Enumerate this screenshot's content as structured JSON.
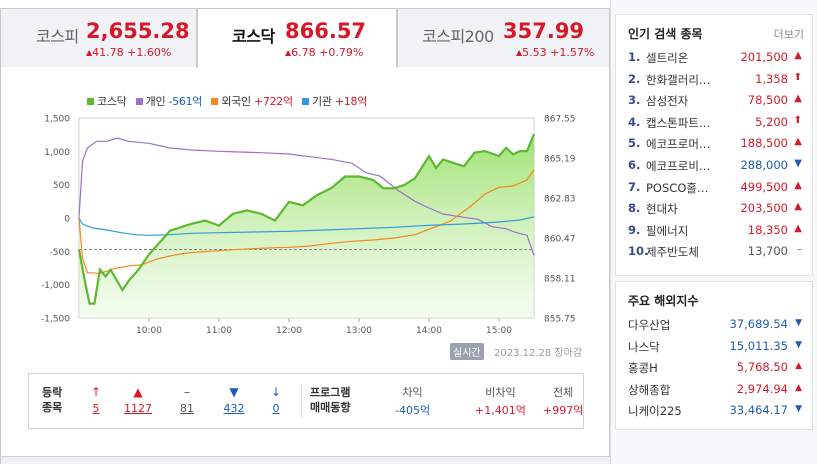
{
  "tabs": [
    {
      "name": "코스피",
      "value": "2,655.28",
      "change": "41.78 +1.60%",
      "active": false
    },
    {
      "name": "코스닥",
      "value": "866.57",
      "change": "6.78 +0.79%",
      "active": true
    },
    {
      "name": "코스피200",
      "value": "357.99",
      "change": "5.53 +1.57%",
      "active": false
    }
  ],
  "legend": [
    {
      "label": "코스닥",
      "value": "",
      "color": "#5cb82e"
    },
    {
      "label": "개인",
      "value": "-561억",
      "color": "#9b72c7"
    },
    {
      "label": "외국인",
      "value": "+722억",
      "color": "#f08a1c"
    },
    {
      "label": "기관",
      "value": "+18억",
      "color": "#2e9ae0"
    }
  ],
  "realtime_label": "실시간",
  "date_label": "2023.12.28 장마감",
  "chart_data": {
    "type": "line",
    "x_ticks": [
      "10:00",
      "11:00",
      "12:00",
      "13:00",
      "14:00",
      "15:00"
    ],
    "x_tick_times": [
      10.0,
      11.0,
      12.0,
      13.0,
      14.0,
      15.0
    ],
    "x_range": [
      9.0,
      15.5
    ],
    "y_left_ticks": [
      "1,500",
      "1,000",
      "500",
      "0",
      "-500",
      "-1,000",
      "-1,500"
    ],
    "y_left_range": [
      -1500,
      1500
    ],
    "y_right_ticks": [
      "867.55",
      "865.19",
      "862.83",
      "860.47",
      "858.11",
      "855.75"
    ],
    "y_right_range": [
      855.75,
      867.55
    ],
    "prev_close": 859.79,
    "series": [
      {
        "name": "코스닥",
        "axis": "right",
        "color": "#5cb82e",
        "fill": true,
        "points": [
          [
            9.0,
            859.8
          ],
          [
            9.08,
            858.0
          ],
          [
            9.15,
            856.6
          ],
          [
            9.22,
            856.6
          ],
          [
            9.3,
            858.6
          ],
          [
            9.38,
            858.2
          ],
          [
            9.45,
            858.6
          ],
          [
            9.55,
            857.9
          ],
          [
            9.62,
            857.4
          ],
          [
            9.72,
            858.0
          ],
          [
            9.85,
            858.6
          ],
          [
            10.0,
            859.5
          ],
          [
            10.15,
            860.2
          ],
          [
            10.3,
            860.9
          ],
          [
            10.45,
            861.1
          ],
          [
            10.6,
            861.3
          ],
          [
            10.8,
            861.5
          ],
          [
            11.0,
            861.2
          ],
          [
            11.2,
            861.9
          ],
          [
            11.4,
            862.1
          ],
          [
            11.6,
            861.9
          ],
          [
            11.8,
            861.5
          ],
          [
            12.0,
            862.6
          ],
          [
            12.2,
            862.4
          ],
          [
            12.4,
            863.0
          ],
          [
            12.6,
            863.4
          ],
          [
            12.8,
            864.1
          ],
          [
            13.0,
            864.1
          ],
          [
            13.2,
            863.9
          ],
          [
            13.35,
            863.4
          ],
          [
            13.5,
            863.4
          ],
          [
            13.65,
            863.6
          ],
          [
            13.8,
            864.0
          ],
          [
            14.0,
            865.3
          ],
          [
            14.1,
            864.6
          ],
          [
            14.2,
            865.1
          ],
          [
            14.35,
            864.9
          ],
          [
            14.5,
            864.7
          ],
          [
            14.65,
            865.5
          ],
          [
            14.8,
            865.6
          ],
          [
            15.0,
            865.3
          ],
          [
            15.1,
            865.8
          ],
          [
            15.2,
            865.4
          ],
          [
            15.3,
            865.6
          ],
          [
            15.4,
            865.6
          ],
          [
            15.5,
            866.6
          ]
        ]
      },
      {
        "name": "개인",
        "axis": "left",
        "color": "#9b72c7",
        "fill": false,
        "points": [
          [
            9.0,
            0
          ],
          [
            9.05,
            850
          ],
          [
            9.12,
            1050
          ],
          [
            9.25,
            1150
          ],
          [
            9.4,
            1150
          ],
          [
            9.55,
            1200
          ],
          [
            9.7,
            1150
          ],
          [
            10.0,
            1120
          ],
          [
            10.3,
            1050
          ],
          [
            10.6,
            1020
          ],
          [
            11.0,
            1000
          ],
          [
            11.3,
            990
          ],
          [
            11.6,
            980
          ],
          [
            12.0,
            960
          ],
          [
            12.3,
            920
          ],
          [
            12.6,
            880
          ],
          [
            12.9,
            820
          ],
          [
            13.1,
            680
          ],
          [
            13.3,
            630
          ],
          [
            13.55,
            420
          ],
          [
            13.8,
            250
          ],
          [
            14.0,
            150
          ],
          [
            14.2,
            60
          ],
          [
            14.5,
            10
          ],
          [
            14.7,
            -20
          ],
          [
            14.9,
            -130
          ],
          [
            15.1,
            -160
          ],
          [
            15.25,
            -220
          ],
          [
            15.4,
            -260
          ],
          [
            15.5,
            -561
          ]
        ]
      },
      {
        "name": "외국인",
        "axis": "left",
        "color": "#f08a1c",
        "fill": false,
        "points": [
          [
            9.0,
            0
          ],
          [
            9.05,
            -600
          ],
          [
            9.12,
            -820
          ],
          [
            9.3,
            -830
          ],
          [
            9.5,
            -760
          ],
          [
            9.7,
            -720
          ],
          [
            9.9,
            -700
          ],
          [
            10.1,
            -620
          ],
          [
            10.3,
            -570
          ],
          [
            10.5,
            -530
          ],
          [
            10.7,
            -510
          ],
          [
            11.0,
            -490
          ],
          [
            11.3,
            -470
          ],
          [
            11.7,
            -450
          ],
          [
            12.0,
            -440
          ],
          [
            12.3,
            -420
          ],
          [
            12.6,
            -380
          ],
          [
            12.9,
            -350
          ],
          [
            13.2,
            -330
          ],
          [
            13.5,
            -300
          ],
          [
            13.8,
            -250
          ],
          [
            14.0,
            -170
          ],
          [
            14.3,
            -50
          ],
          [
            14.6,
            180
          ],
          [
            14.8,
            360
          ],
          [
            15.0,
            460
          ],
          [
            15.2,
            480
          ],
          [
            15.4,
            570
          ],
          [
            15.5,
            722
          ]
        ]
      },
      {
        "name": "기관",
        "axis": "left",
        "color": "#2e9ae0",
        "fill": false,
        "points": [
          [
            9.0,
            0
          ],
          [
            9.05,
            -90
          ],
          [
            9.2,
            -150
          ],
          [
            9.4,
            -180
          ],
          [
            9.6,
            -220
          ],
          [
            9.8,
            -250
          ],
          [
            10.0,
            -260
          ],
          [
            10.3,
            -250
          ],
          [
            10.6,
            -230
          ],
          [
            11.0,
            -220
          ],
          [
            11.5,
            -210
          ],
          [
            12.0,
            -200
          ],
          [
            12.5,
            -180
          ],
          [
            13.0,
            -160
          ],
          [
            13.5,
            -140
          ],
          [
            14.0,
            -110
          ],
          [
            14.5,
            -90
          ],
          [
            15.0,
            -60
          ],
          [
            15.3,
            -30
          ],
          [
            15.5,
            18
          ]
        ]
      }
    ]
  },
  "stats": {
    "label_line1": "등락",
    "label_line2": "종목",
    "items": [
      {
        "icon": "arrow-up-icon",
        "glyph": "↑",
        "value": "5",
        "color": "#d6192a"
      },
      {
        "icon": "triangle-up-icon",
        "glyph": "▲",
        "value": "1127",
        "color": "#d6192a"
      },
      {
        "icon": "flat-icon",
        "glyph": "–",
        "value": "81",
        "color": "#555555"
      },
      {
        "icon": "triangle-down-icon",
        "glyph": "▼",
        "value": "432",
        "color": "#1e5bb8"
      },
      {
        "icon": "arrow-down-icon",
        "glyph": "↓",
        "value": "0",
        "color": "#1e5bb8"
      }
    ],
    "program_label_line1": "프로그램",
    "program_label_line2": "매매동향",
    "program": [
      {
        "header": "차익",
        "value": "-405억",
        "color": "#1e5bb8"
      },
      {
        "header": "비차익",
        "value": "+1,401억",
        "color": "#d6192a"
      },
      {
        "header": "전체",
        "value": "+997억",
        "color": "#d6192a"
      }
    ]
  },
  "popular": {
    "title": "인기 검색 종목",
    "more": "더보기",
    "items": [
      {
        "rank": "1.",
        "name": "셀트리온",
        "price": "201,500",
        "dir": "up"
      },
      {
        "rank": "2.",
        "name": "한화갤러리…",
        "price": "1,358",
        "dir": "upper"
      },
      {
        "rank": "3.",
        "name": "삼성전자",
        "price": "78,500",
        "dir": "up"
      },
      {
        "rank": "4.",
        "name": "캡스톤파트…",
        "price": "5,200",
        "dir": "upper"
      },
      {
        "rank": "5.",
        "name": "에코프로머…",
        "price": "188,500",
        "dir": "up"
      },
      {
        "rank": "6.",
        "name": "에코프로비…",
        "price": "288,000",
        "dir": "down"
      },
      {
        "rank": "7.",
        "name": "POSCO홀…",
        "price": "499,500",
        "dir": "up"
      },
      {
        "rank": "8.",
        "name": "현대차",
        "price": "203,500",
        "dir": "up"
      },
      {
        "rank": "9.",
        "name": "필에너지",
        "price": "18,350",
        "dir": "up"
      },
      {
        "rank": "10.",
        "name": "제주반도체",
        "price": "13,700",
        "dir": "flat"
      }
    ]
  },
  "world": {
    "title": "주요 해외지수",
    "items": [
      {
        "name": "다우산업",
        "value": "37,689.54",
        "dir": "down"
      },
      {
        "name": "나스닥",
        "value": "15,011.35",
        "dir": "down"
      },
      {
        "name": "홍콩H",
        "value": "5,768.50",
        "dir": "up"
      },
      {
        "name": "상해종합",
        "value": "2,974.94",
        "dir": "up"
      },
      {
        "name": "니케이225",
        "value": "33,464.17",
        "dir": "down"
      }
    ]
  },
  "colors": {
    "up": "#d6192a",
    "down": "#1e5bb8",
    "flat": "#555555"
  }
}
